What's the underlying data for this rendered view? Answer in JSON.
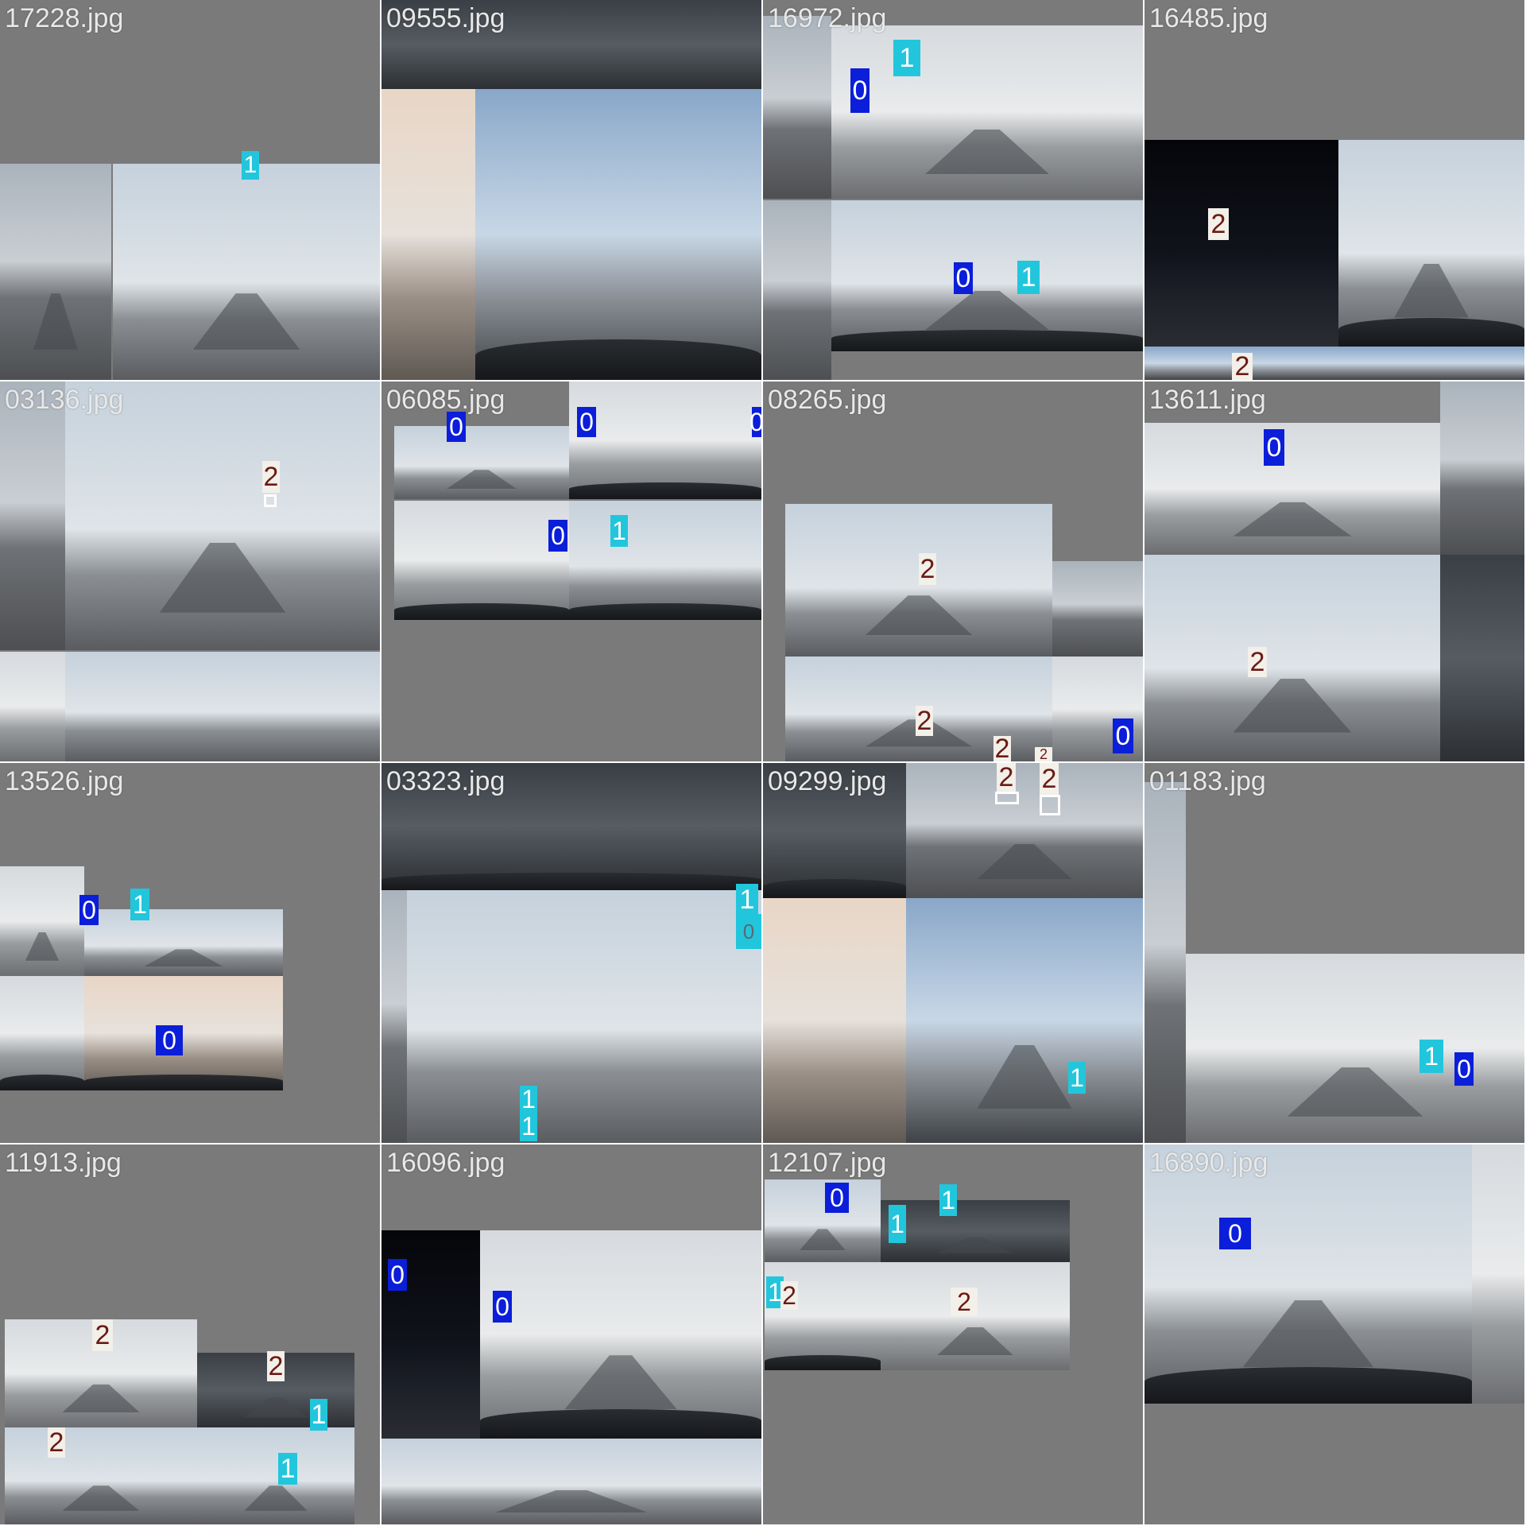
{
  "window": {
    "title": ""
  },
  "grid": {
    "columns": 4,
    "rows": 4,
    "cells": [
      {
        "filename": "17228.jpg",
        "labels": [
          "1"
        ]
      },
      {
        "filename": "09555.jpg",
        "labels": []
      },
      {
        "filename": "16972.jpg",
        "labels": [
          "1",
          "0",
          "0",
          "1"
        ]
      },
      {
        "filename": "16485.jpg",
        "labels": [
          "2",
          "2"
        ]
      },
      {
        "filename": "03136.jpg",
        "labels": [
          "2"
        ]
      },
      {
        "filename": "06085.jpg",
        "labels": [
          "0",
          "0",
          "0",
          "0",
          "1"
        ]
      },
      {
        "filename": "08265.jpg",
        "labels": [
          "2",
          "2",
          "0",
          "2",
          "2"
        ]
      },
      {
        "filename": "13611.jpg",
        "labels": [
          "0",
          "2"
        ]
      },
      {
        "filename": "13526.jpg",
        "labels": [
          "0",
          "1",
          "0"
        ]
      },
      {
        "filename": "03323.jpg",
        "labels": [
          "1",
          "0",
          "1",
          "1"
        ]
      },
      {
        "filename": "09299.jpg",
        "labels": [
          "2",
          "2",
          "1"
        ]
      },
      {
        "filename": "01183.jpg",
        "labels": [
          "1",
          "0"
        ]
      },
      {
        "filename": "11913.jpg",
        "labels": [
          "2",
          "2",
          "1",
          "2",
          "1"
        ]
      },
      {
        "filename": "16096.jpg",
        "labels": [
          "0",
          "0"
        ]
      },
      {
        "filename": "12107.jpg",
        "labels": [
          "0",
          "1",
          "1",
          "1",
          "2",
          "2"
        ]
      },
      {
        "filename": "16890.jpg",
        "labels": [
          "0"
        ]
      }
    ]
  },
  "colors": {
    "class_0": "#0b1ed9",
    "class_1": "#22c6dc",
    "class_2": "#f3efe9",
    "class_2_text": "#6b1a14",
    "cell_background": "#7a7a7a",
    "title_text": "#e8e8e8"
  }
}
